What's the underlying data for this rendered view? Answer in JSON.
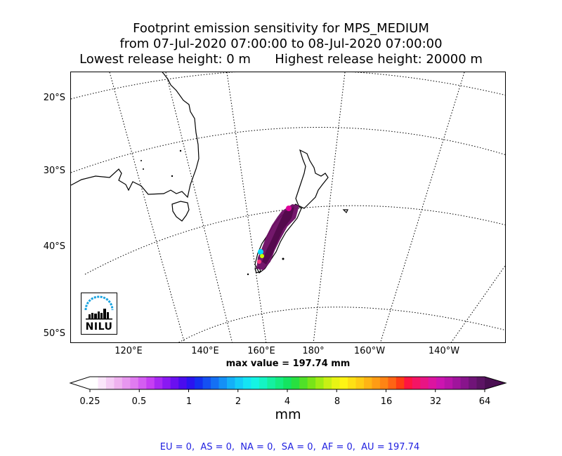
{
  "title": {
    "line1": "Footprint emission sensitivity for MPS_MEDIUM",
    "line2": "from 07-Jul-2020 07:00:00 to 08-Jul-2020 07:00:00",
    "line3": "Lowest release height: 0 m      Highest release height: 20000 m"
  },
  "map": {
    "projection": "polar-stereographic (southern hemisphere)",
    "lat_labels": [
      "20°S",
      "30°S",
      "40°S",
      "50°S"
    ],
    "lon_labels": [
      "120°E",
      "140°E",
      "160°E",
      "180°",
      "160°W",
      "140°W"
    ],
    "max_value": "max value = 197.74 mm",
    "highlight_region": "New Zealand west coast (South Island)",
    "coastline_color": "#000000",
    "graticule_style": "dotted"
  },
  "logo": {
    "text": "NILU",
    "arc_color": "#1aa3e0"
  },
  "colorbar": {
    "units": "mm",
    "tick_labels": [
      "0.25",
      "0.5",
      "1",
      "2",
      "4",
      "8",
      "16",
      "32",
      "64"
    ],
    "scale": "log2",
    "range": [
      0.25,
      64
    ],
    "extend": "both"
  },
  "summary": "EU = 0,  AS = 0,  NA = 0,  SA = 0,  AF = 0,  AU = 197.74"
}
